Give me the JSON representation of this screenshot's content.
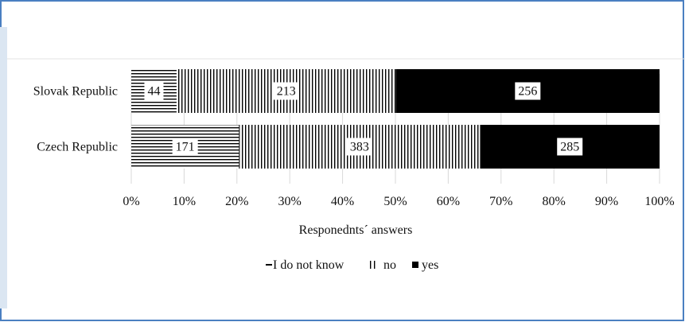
{
  "chart_data": {
    "type": "bar",
    "orientation": "horizontal",
    "stacked": "percent",
    "categories": [
      "Slovak Republic",
      "Czech Republic"
    ],
    "series": [
      {
        "name": "I do not know",
        "values": [
          44,
          171
        ],
        "pattern": "horizontal-lines",
        "color": "#000000"
      },
      {
        "name": "no",
        "values": [
          213,
          383
        ],
        "pattern": "vertical-lines",
        "color": "#000000"
      },
      {
        "name": "yes",
        "values": [
          256,
          285
        ],
        "pattern": "solid",
        "color": "#000000"
      }
    ],
    "x_ticks": [
      "0%",
      "10%",
      "20%",
      "30%",
      "40%",
      "50%",
      "60%",
      "70%",
      "80%",
      "90%",
      "100%"
    ],
    "xlim": [
      0,
      100
    ],
    "xlabel": "Responednts´ answers",
    "ylabel": "",
    "title": "",
    "grid": "vertical",
    "legend": "bottom-center",
    "data_labels": true
  },
  "colors": {
    "frame_border": "#4a7fc1",
    "grid": "#d9d9d9",
    "bar": "#000000"
  }
}
